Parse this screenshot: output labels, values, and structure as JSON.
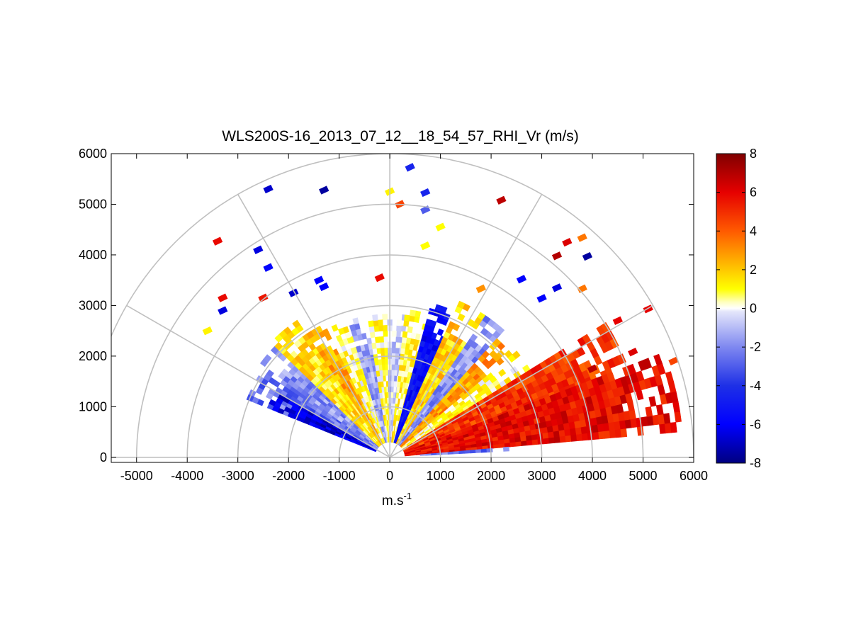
{
  "chart_data": {
    "type": "heatmap",
    "title": "WLS200S-16_2013_07_12__18_54_57_RHI_Vr (m/s)",
    "xlabel_base": "m.s",
    "xlabel_exp": "-1",
    "ylabel": "",
    "xlim": [
      -5500,
      6000
    ],
    "ylim": [
      -100,
      6000
    ],
    "xticks": [
      -5000,
      -4000,
      -3000,
      -2000,
      -1000,
      0,
      1000,
      2000,
      3000,
      4000,
      5000,
      6000
    ],
    "yticks": [
      0,
      1000,
      2000,
      3000,
      4000,
      5000,
      6000
    ],
    "polar_grid": {
      "ranges": [
        1000,
        2000,
        3000,
        4000,
        5000,
        6000
      ],
      "angles_deg": [
        0,
        30,
        60,
        90,
        120,
        150
      ]
    },
    "colorbar": {
      "limits": [
        -8,
        8
      ],
      "ticks": [
        -8,
        -6,
        -4,
        -2,
        0,
        2,
        4,
        6,
        8
      ]
    },
    "sectors": [
      {
        "az": [
          144,
          158
        ],
        "r": [
          300,
          3000
        ],
        "value": -2.5
      },
      {
        "az": [
          150,
          158
        ],
        "r": [
          300,
          2600
        ],
        "value": -6.5
      },
      {
        "az": [
          136,
          144
        ],
        "r": [
          300,
          3100
        ],
        "value": -1.8
      },
      {
        "az": [
          124,
          136
        ],
        "r": [
          300,
          3200
        ],
        "value": 1.5
      },
      {
        "az": [
          116,
          124
        ],
        "r": [
          300,
          2900
        ],
        "value": 2.5
      },
      {
        "az": [
          106,
          116
        ],
        "r": [
          300,
          2800
        ],
        "value": 0.6
      },
      {
        "az": [
          99,
          106
        ],
        "r": [
          300,
          2800
        ],
        "value": -1.5
      },
      {
        "az": [
          91,
          99
        ],
        "r": [
          300,
          2800
        ],
        "value": 0.7
      },
      {
        "az": [
          83,
          91
        ],
        "r": [
          300,
          2800
        ],
        "value": -0.8
      },
      {
        "az": [
          74,
          83
        ],
        "r": [
          300,
          2900
        ],
        "value": 1.0
      },
      {
        "az": [
          65,
          74
        ],
        "r": [
          300,
          3100
        ],
        "value": -5.5
      },
      {
        "az": [
          56,
          65
        ],
        "r": [
          300,
          3300
        ],
        "value": 1.8
      },
      {
        "az": [
          48,
          56
        ],
        "r": [
          300,
          3400
        ],
        "value": -1.8
      },
      {
        "az": [
          40,
          48
        ],
        "r": [
          300,
          3100
        ],
        "value": 2.8
      },
      {
        "az": [
          32,
          40
        ],
        "r": [
          300,
          3200
        ],
        "value": 0.8
      },
      {
        "az": [
          20,
          32
        ],
        "r": [
          300,
          5000
        ],
        "value": 4.8
      },
      {
        "az": [
          5,
          20
        ],
        "r": [
          300,
          5800
        ],
        "value": 5.8
      },
      {
        "az": [
          3,
          5
        ],
        "r": [
          600,
          2500
        ],
        "value": -2.5
      }
    ],
    "scatter_cells": [
      {
        "x": -3600,
        "y": 2500,
        "value": 1.2
      },
      {
        "x": -3400,
        "y": 4270,
        "value": 5.8
      },
      {
        "x": -3300,
        "y": 2900,
        "value": -6.5
      },
      {
        "x": -3300,
        "y": 3150,
        "value": 5.8
      },
      {
        "x": -2400,
        "y": 5300,
        "value": -6.8
      },
      {
        "x": -1300,
        "y": 5280,
        "value": -7.5
      },
      {
        "x": -2600,
        "y": 4100,
        "value": -6.5
      },
      {
        "x": -2400,
        "y": 3750,
        "value": -5.8
      },
      {
        "x": -1900,
        "y": 3250,
        "value": -6.8
      },
      {
        "x": -1400,
        "y": 3500,
        "value": -6.0
      },
      {
        "x": -2500,
        "y": 3150,
        "value": 5.5
      },
      {
        "x": -1300,
        "y": 3370,
        "value": -6.0
      },
      {
        "x": 200,
        "y": 5000,
        "value": 4.5
      },
      {
        "x": 0,
        "y": 5250,
        "value": 1.2
      },
      {
        "x": 400,
        "y": 5730,
        "value": -4.5
      },
      {
        "x": 700,
        "y": 5230,
        "value": -4.5
      },
      {
        "x": 700,
        "y": 4890,
        "value": -3.0
      },
      {
        "x": 1000,
        "y": 4550,
        "value": 1.0
      },
      {
        "x": 700,
        "y": 4180,
        "value": 1.0
      },
      {
        "x": -200,
        "y": 3550,
        "value": 5.8
      },
      {
        "x": 2200,
        "y": 5080,
        "value": 6.8
      },
      {
        "x": 3500,
        "y": 4250,
        "value": 6.2
      },
      {
        "x": 3800,
        "y": 4340,
        "value": 3.5
      },
      {
        "x": 3300,
        "y": 3980,
        "value": 7.0
      },
      {
        "x": 3900,
        "y": 3970,
        "value": -7.5
      },
      {
        "x": 1800,
        "y": 3330,
        "value": 3.0
      },
      {
        "x": 2600,
        "y": 3520,
        "value": -6.0
      },
      {
        "x": 3000,
        "y": 3140,
        "value": -6.0
      },
      {
        "x": 3300,
        "y": 3350,
        "value": -6.5
      },
      {
        "x": 3800,
        "y": 3330,
        "value": 3.5
      },
      {
        "x": 4500,
        "y": 2700,
        "value": 6.0
      },
      {
        "x": 5100,
        "y": 2930,
        "value": 6.0
      },
      {
        "x": 4800,
        "y": 2080,
        "value": 6.2
      },
      {
        "x": 4000,
        "y": 1750,
        "value": 6.8
      },
      {
        "x": 5600,
        "y": 1900,
        "value": 4.5
      }
    ]
  }
}
